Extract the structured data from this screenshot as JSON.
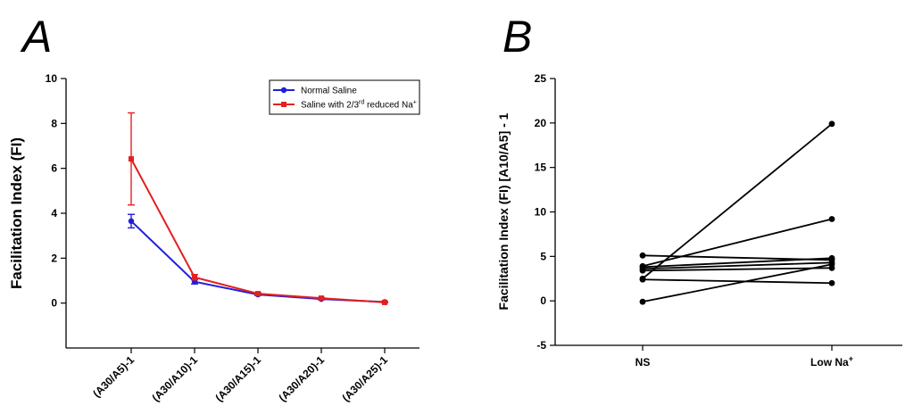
{
  "chart_data": [
    {
      "panel": "A",
      "type": "line",
      "ylabel": "Facilitation Index (FI)",
      "xlabel": "",
      "ylim": [
        -2,
        10
      ],
      "yticks": [
        0,
        2,
        4,
        6,
        8,
        10
      ],
      "categories": [
        "(A30/A5)-1",
        "(A30/A10)-1",
        "(A30/A15)-1",
        "(A30/A20)-1",
        "(A30/A25)-1"
      ],
      "legend_position": "top-right",
      "series": [
        {
          "name": "Normal Saline",
          "color": "#1f1fdc",
          "marker": "circle",
          "values": [
            3.65,
            0.95,
            0.38,
            0.18,
            0.05
          ],
          "errors": [
            0.3,
            0.1,
            0.04,
            0.03,
            0.02
          ]
        },
        {
          "name": "Saline with 2/3rd reduced Na+",
          "name_parts": {
            "pre": "Saline with 2/3",
            "sup1": "rd",
            "mid": " reduced Na",
            "sup2": "+"
          },
          "color": "#e32020",
          "marker": "square",
          "values": [
            6.42,
            1.15,
            0.42,
            0.22,
            0.03
          ],
          "errors": [
            2.05,
            0.12,
            0.04,
            0.03,
            0.02
          ]
        }
      ]
    },
    {
      "panel": "B",
      "type": "line",
      "ylabel": "Facilitation Index (FI) [A10/A5] - 1",
      "xlabel": "",
      "ylim": [
        -5,
        25
      ],
      "yticks": [
        -5,
        0,
        5,
        10,
        15,
        20,
        25
      ],
      "categories": [
        "NS",
        "Low Na+"
      ],
      "category_parts": [
        {
          "base": "NS",
          "sup": ""
        },
        {
          "base": "Low Na",
          "sup": "+"
        }
      ],
      "color": "#000000",
      "pairs": [
        [
          5.1,
          4.6
        ],
        [
          3.9,
          9.2
        ],
        [
          3.8,
          4.8
        ],
        [
          3.6,
          4.3
        ],
        [
          3.4,
          3.7
        ],
        [
          2.5,
          19.9
        ],
        [
          2.4,
          2.0
        ],
        [
          -0.1,
          4.1
        ]
      ]
    }
  ]
}
